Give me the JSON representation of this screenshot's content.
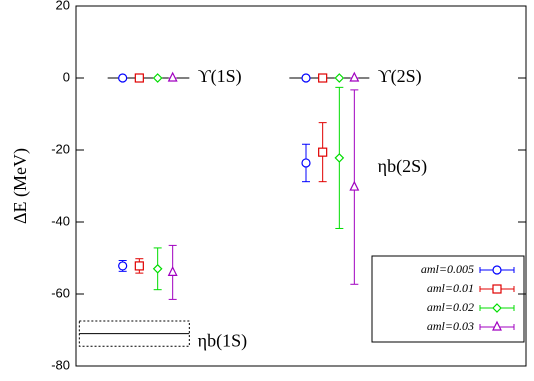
{
  "chart_data": {
    "type": "errorbar-scatter",
    "ylabel": "ΔE (MeV)",
    "xlim": [
      0,
      27
    ],
    "ylim": [
      -80,
      20
    ],
    "yticks": [
      -80,
      -60,
      -40,
      -20,
      0,
      20
    ],
    "series": [
      {
        "name": "aml=0.005",
        "color": "#0000ff",
        "marker": "circle",
        "x": [
          2.8,
          13.8,
          2.8,
          13.8
        ],
        "values": [
          0,
          0,
          -52.2,
          -23.6
        ],
        "errors": [
          0,
          0,
          1.5,
          5.2
        ]
      },
      {
        "name": "aml=0.01",
        "color": "#e00000",
        "marker": "square",
        "x": [
          3.8,
          14.8,
          3.8,
          14.8
        ],
        "values": [
          0,
          0,
          -52.2,
          -20.6
        ],
        "errors": [
          0,
          0,
          2,
          8.2
        ]
      },
      {
        "name": "aml=0.02",
        "color": "#00dd00",
        "marker": "diamond",
        "x": [
          4.9,
          15.8,
          4.9,
          15.8
        ],
        "values": [
          0,
          0,
          -53,
          -22.2
        ],
        "errors": [
          0,
          0,
          5.8,
          19.6
        ]
      },
      {
        "name": "aml=0.03",
        "color": "#a000c0",
        "marker": "triangle",
        "x": [
          5.8,
          16.7,
          5.8,
          16.7
        ],
        "values": [
          0,
          0,
          -54,
          -30.3
        ],
        "errors": [
          0,
          0,
          7.5,
          27
        ]
      }
    ],
    "reference_lines": [
      {
        "value": 0,
        "x": [
          1.9,
          6.8
        ]
      },
      {
        "value": 0,
        "x": [
          12.8,
          17.6
        ]
      }
    ],
    "experiment": {
      "value": -71,
      "error": 3.5,
      "x": [
        0.2,
        6.8
      ]
    },
    "annotations": [
      {
        "text": "ϒ(1S)",
        "x": 7.3,
        "y": 0
      },
      {
        "text": "ϒ(2S)",
        "x": 18.1,
        "y": 0
      },
      {
        "text": "ηb(2S)",
        "x": 18.1,
        "y": -25
      },
      {
        "text": "ηb(1S)",
        "x": 7.3,
        "y": -73.5
      }
    ]
  }
}
